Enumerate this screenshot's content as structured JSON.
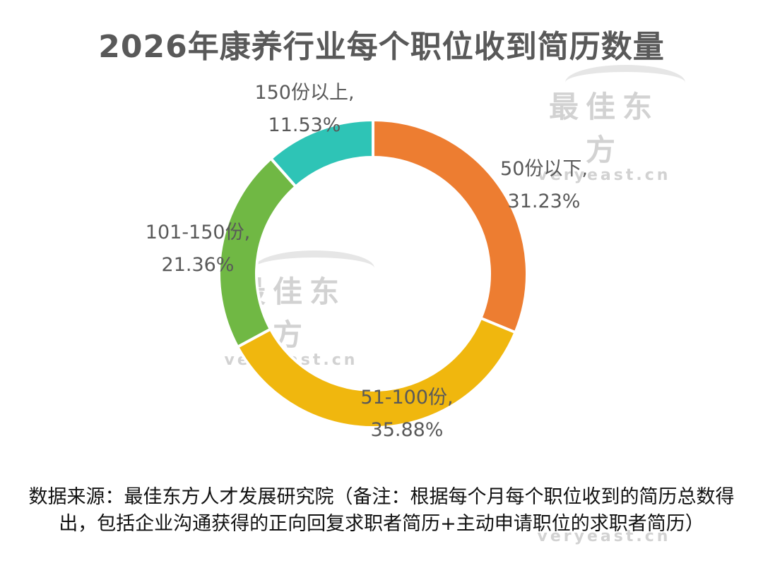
{
  "chart_data": {
    "type": "pie",
    "style": "donut",
    "title": "2026年康养行业每个职位收到简历数量",
    "categories": [
      "50份以下",
      "51-100份",
      "101-150份",
      "150份以上"
    ],
    "values": [
      31.23,
      35.88,
      21.36,
      11.53
    ],
    "labels": [
      "31.23%",
      "35.88%",
      "21.36%",
      "11.53%"
    ],
    "colors": [
      "#ED7D31",
      "#F0B70E",
      "#70B844",
      "#2EC4B6"
    ],
    "legend": "none"
  },
  "watermark": {
    "cn": "最佳东方",
    "en": "veryeast.cn"
  },
  "footnote": {
    "line1": "数据来源：最佳东方人才发展研究院（备注：根据每个月每个职位收到的简历总数得",
    "line2": "出，包括企业沟通获得的正向回复求职者简历+主动申请职位的求职者简历）"
  }
}
